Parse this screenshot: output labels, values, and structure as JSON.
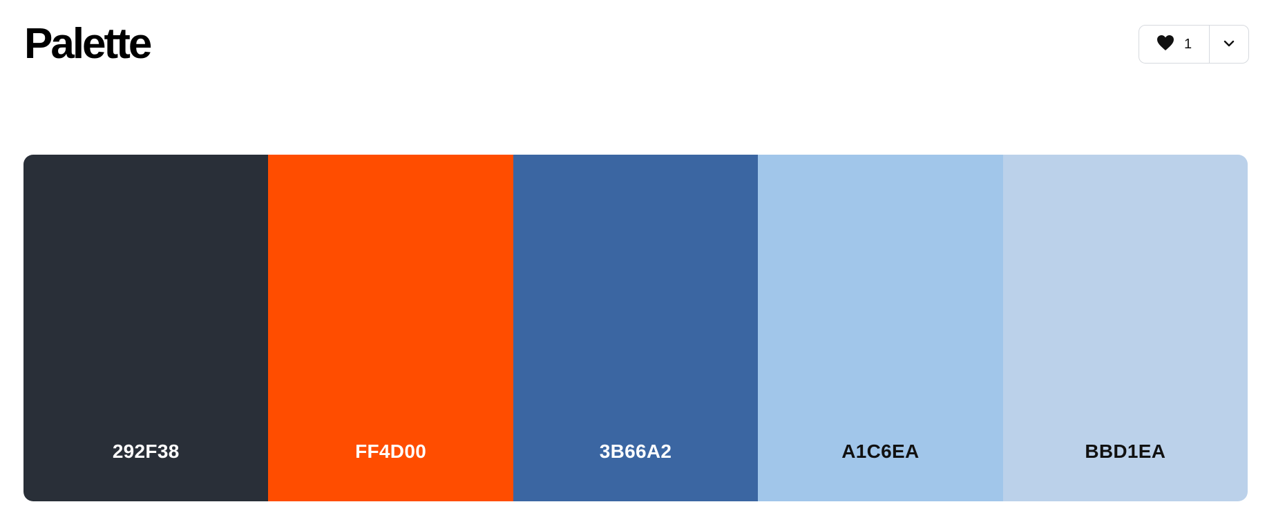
{
  "header": {
    "title": "Palette"
  },
  "actions": {
    "like_count": "1",
    "like_icon": "heart-icon",
    "menu_icon": "chevron-down-icon"
  },
  "palette": {
    "swatches": [
      {
        "code": "292F38",
        "color": "#292F38",
        "text_color": "#ffffff"
      },
      {
        "code": "FF4D00",
        "color": "#FF4D00",
        "text_color": "#ffffff"
      },
      {
        "code": "3B66A2",
        "color": "#3B66A2",
        "text_color": "#ffffff"
      },
      {
        "code": "A1C6EA",
        "color": "#A1C6EA",
        "text_color": "#111111"
      },
      {
        "code": "BBD1EA",
        "color": "#BBD1EA",
        "text_color": "#111111"
      }
    ]
  }
}
